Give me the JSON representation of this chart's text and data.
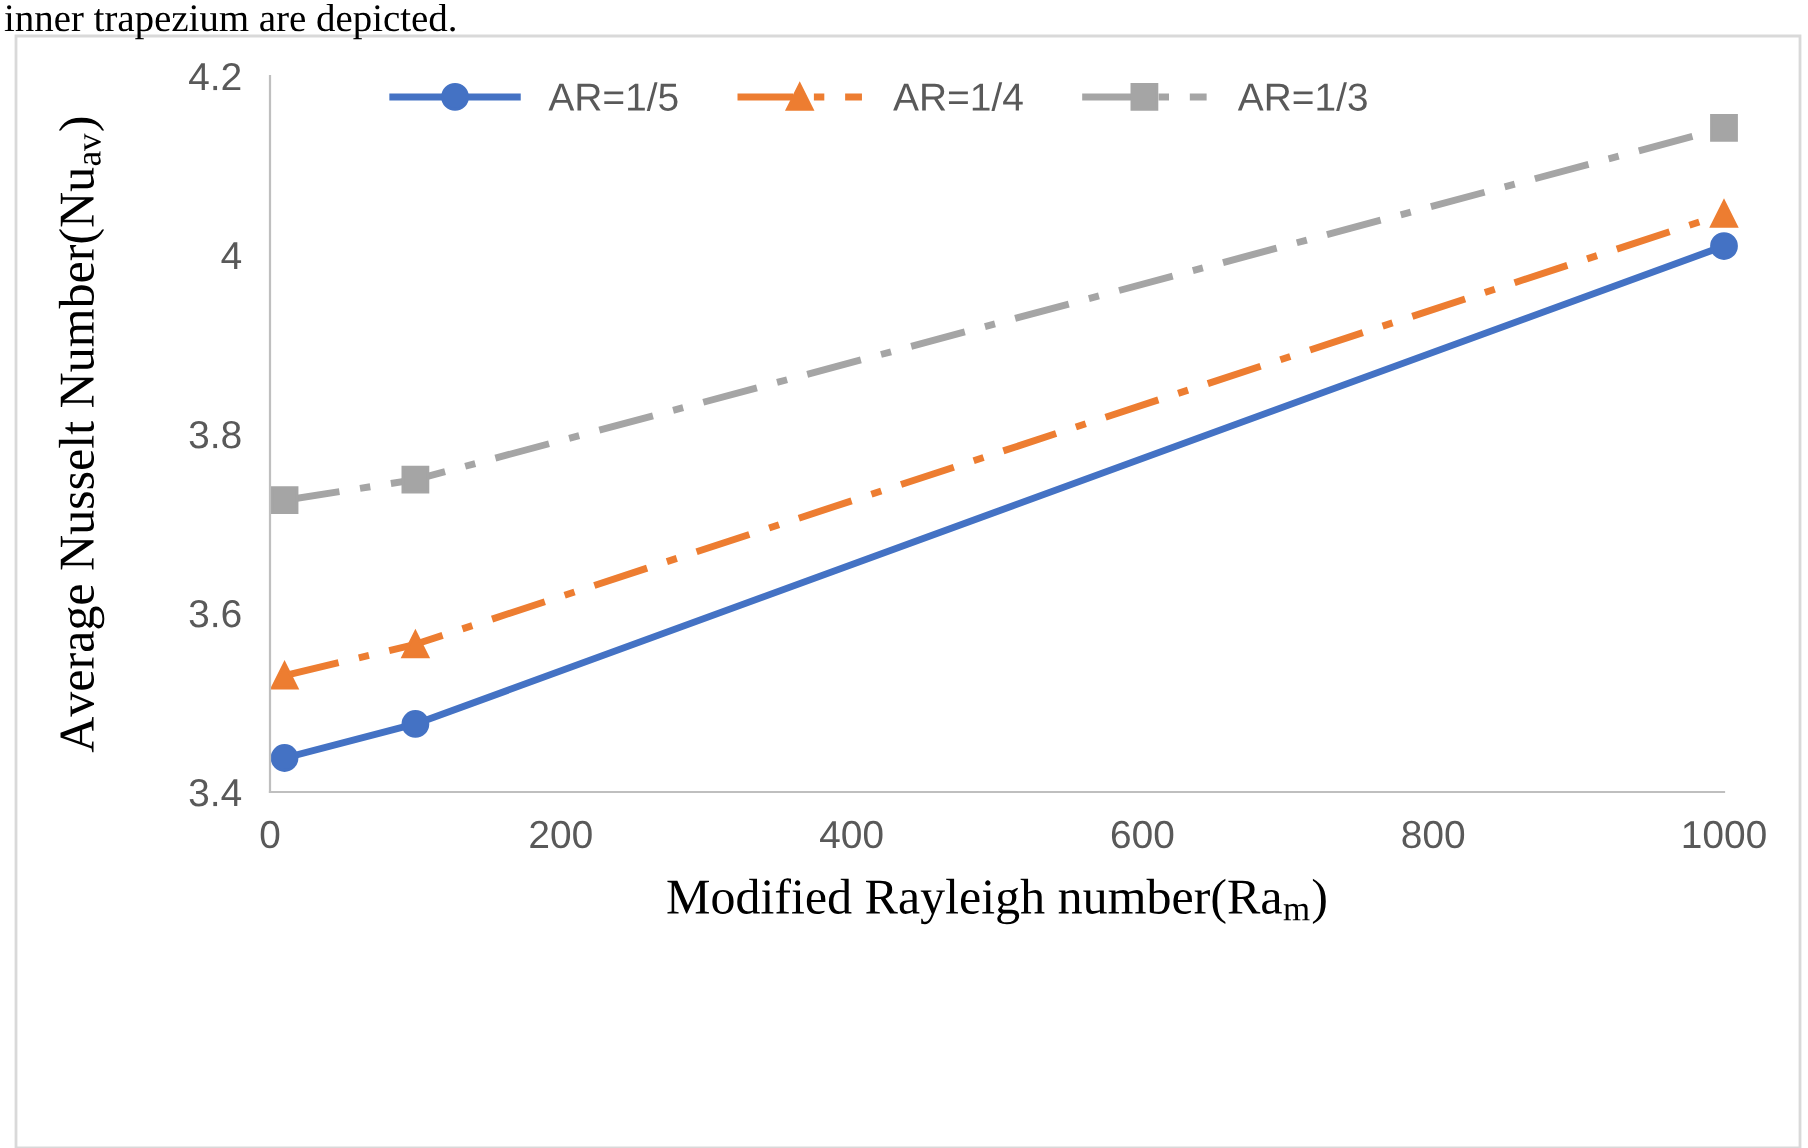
{
  "chart_data": {
    "type": "line",
    "xlabel": "Modified Rayleigh number(Ra$_{m}$)",
    "ylabel": "Average Nusselt Number(Nu$_{av}$)",
    "annotations": [
      "inner trapezium are depicted."
    ],
    "x": [
      10,
      100,
      1000
    ],
    "series": [
      {
        "name": "AR=1/5",
        "color": "#4472c4",
        "values": [
          3.438,
          3.476,
          4.01
        ],
        "marker": "circle",
        "line_style": "solid"
      },
      {
        "name": "AR=1/4",
        "color": "#ed7d31",
        "values": [
          3.53,
          3.565,
          4.046
        ],
        "marker": "triangle",
        "line_style": "dashed"
      },
      {
        "name": "AR=1/3",
        "color": "#a5a5a5",
        "values": [
          3.726,
          3.749,
          4.142
        ],
        "marker": "square",
        "line_style": "dashed"
      }
    ],
    "xlim": [
      0,
      1000
    ],
    "xticks": [
      0,
      200,
      400,
      600,
      800,
      1000
    ],
    "ylim": [
      3.4,
      4.2
    ],
    "yticks": [
      3.4,
      3.6,
      3.8,
      4,
      4.2
    ],
    "grid": false,
    "legend": "top"
  }
}
